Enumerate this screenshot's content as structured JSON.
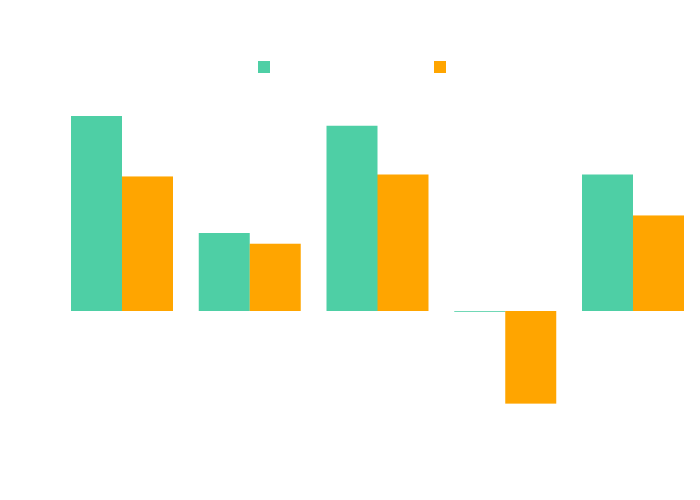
{
  "chart_data": {
    "type": "bar",
    "categories": [
      "",
      "",
      "",
      "",
      ""
    ],
    "series": [
      {
        "name": "",
        "color": "#4ecfa5",
        "values": [
          100,
          40,
          95,
          0,
          70
        ]
      },
      {
        "name": "",
        "color": "#ffa500",
        "values": [
          69,
          34.5,
          70,
          -47.5,
          49
        ]
      }
    ],
    "title": "",
    "xlabel": "",
    "ylabel": "",
    "ylim": [
      -70,
      120
    ],
    "grid": false,
    "legend": "top-center"
  }
}
